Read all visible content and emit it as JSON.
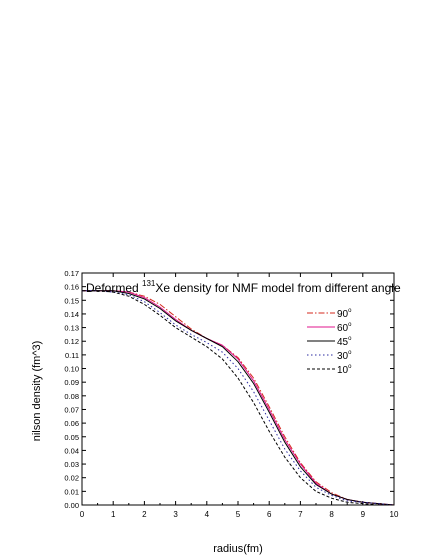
{
  "chart_data": {
    "type": "line",
    "title_parts": {
      "prefix": "Deformed ",
      "superscript": "131",
      "suffix": "Xe density for NMF model from different angle"
    },
    "xlabel": "radius(fm)",
    "ylabel": "nilson density (fm^3)",
    "xlim": [
      0,
      10
    ],
    "ylim": [
      0,
      0.17
    ],
    "x_ticks": [
      "0",
      "1",
      "2",
      "3",
      "4",
      "5",
      "6",
      "7",
      "8",
      "9",
      "10"
    ],
    "y_ticks": [
      "0.00",
      "0.01",
      "0.02",
      "0.03",
      "0.04",
      "0.05",
      "0.06",
      "0.07",
      "0.08",
      "0.09",
      "0.10",
      "0.11",
      "0.12",
      "0.13",
      "0.14",
      "0.15",
      "0.16",
      "0.17"
    ],
    "legend_position": "right",
    "series": [
      {
        "name": "90",
        "name_sup": "o",
        "color": "#d42a1e",
        "dash": "6,2,1.5,2",
        "x": [
          0,
          0.5,
          1,
          1.5,
          2,
          2.5,
          3,
          3.5,
          4,
          4.5,
          5,
          5.5,
          6,
          6.5,
          7,
          7.5,
          8,
          8.5,
          9,
          9.5,
          10
        ],
        "y": [
          0.157,
          0.157,
          0.157,
          0.156,
          0.153,
          0.147,
          0.138,
          0.129,
          0.122,
          0.117,
          0.108,
          0.093,
          0.072,
          0.05,
          0.031,
          0.017,
          0.009,
          0.004,
          0.002,
          0.001,
          0.0
        ]
      },
      {
        "name": "60",
        "name_sup": "o",
        "color": "#e0148c",
        "dash": "",
        "x": [
          0,
          0.5,
          1,
          1.5,
          2,
          2.5,
          3,
          3.5,
          4,
          4.5,
          5,
          5.5,
          6,
          6.5,
          7,
          7.5,
          8,
          8.5,
          9,
          9.5,
          10
        ],
        "y": [
          0.157,
          0.157,
          0.157,
          0.156,
          0.152,
          0.145,
          0.136,
          0.128,
          0.122,
          0.117,
          0.107,
          0.091,
          0.07,
          0.048,
          0.03,
          0.016,
          0.008,
          0.004,
          0.002,
          0.001,
          0.0
        ]
      },
      {
        "name": "45",
        "name_sup": "o",
        "color": "#000000",
        "dash": "",
        "x": [
          0,
          0.5,
          1,
          1.5,
          2,
          2.5,
          3,
          3.5,
          4,
          4.5,
          5,
          5.5,
          6,
          6.5,
          7,
          7.5,
          8,
          8.5,
          9,
          9.5,
          10
        ],
        "y": [
          0.157,
          0.157,
          0.157,
          0.155,
          0.151,
          0.144,
          0.135,
          0.128,
          0.122,
          0.116,
          0.105,
          0.089,
          0.068,
          0.046,
          0.028,
          0.015,
          0.008,
          0.004,
          0.002,
          0.001,
          0.0
        ]
      },
      {
        "name": "30",
        "name_sup": "o",
        "color": "#2a2aa0",
        "dash": "1.5,2.5",
        "x": [
          0,
          0.5,
          1,
          1.5,
          2,
          2.5,
          3,
          3.5,
          4,
          4.5,
          5,
          5.5,
          6,
          6.5,
          7,
          7.5,
          8,
          8.5,
          9,
          9.5,
          10
        ],
        "y": [
          0.157,
          0.157,
          0.156,
          0.154,
          0.149,
          0.141,
          0.132,
          0.125,
          0.119,
          0.112,
          0.1,
          0.083,
          0.062,
          0.041,
          0.025,
          0.013,
          0.007,
          0.003,
          0.002,
          0.001,
          0.0
        ]
      },
      {
        "name": "10",
        "name_sup": "o",
        "color": "#000000",
        "dash": "3,2",
        "x": [
          0,
          0.5,
          1,
          1.5,
          2,
          2.5,
          3,
          3.5,
          4,
          4.5,
          5,
          5.5,
          6,
          6.5,
          7,
          7.5,
          8,
          8.5,
          9,
          9.5,
          10
        ],
        "y": [
          0.157,
          0.157,
          0.156,
          0.153,
          0.147,
          0.139,
          0.13,
          0.123,
          0.116,
          0.107,
          0.093,
          0.075,
          0.054,
          0.035,
          0.02,
          0.01,
          0.005,
          0.002,
          0.001,
          0.0,
          0.0
        ]
      }
    ]
  }
}
